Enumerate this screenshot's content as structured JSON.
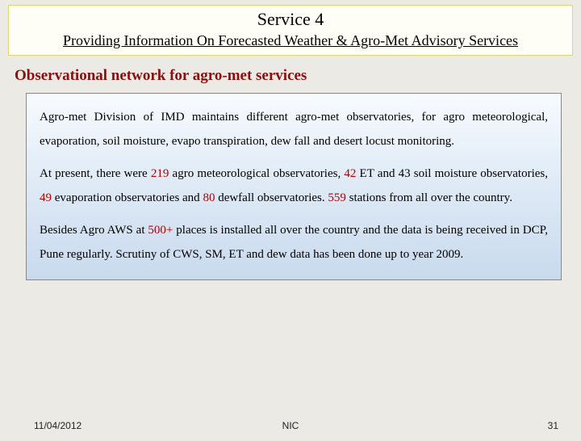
{
  "title": {
    "main": "Service 4",
    "sub": "Providing Information On Forecasted Weather & Agro-Met Advisory Services"
  },
  "section_heading": "Observational network for agro-met services",
  "paragraphs": {
    "p1": "Agro-met Division of IMD maintains different agro-met observatories, for agro meteorological, evaporation, soil moisture, evapo transpiration, dew fall and desert locust monitoring.",
    "p2_a": "At present, there were ",
    "p2_n1": "219",
    "p2_b": " agro meteorological observatories, ",
    "p2_n2": "42",
    "p2_c": " ET and 43 soil moisture observatories, ",
    "p2_n3": "49",
    "p2_d": " evaporation observatories and ",
    "p2_n4": "80",
    "p2_e": " dewfall observatories. ",
    "p2_n5": "559",
    "p2_f": " stations from all over the country.",
    "p3_a": "Besides Agro AWS at ",
    "p3_n1": "500+",
    "p3_b": " places is installed all over the country and the data is being received in DCP, Pune regularly. Scrutiny of CWS, SM, ET and dew data has been done up to year 2009."
  },
  "footer": {
    "date": "11/04/2012",
    "center": "NIC",
    "page": "31"
  },
  "colors": {
    "page_bg": "#ebeae4",
    "title_border": "#d9d770",
    "title_bg": "#fefef6",
    "heading_color": "#8a0f0f",
    "box_border": "#888888",
    "box_grad_top": "#f7fbff",
    "box_grad_mid": "#dce8f5",
    "box_grad_bot": "#c9daee",
    "highlight": "#b00000"
  }
}
